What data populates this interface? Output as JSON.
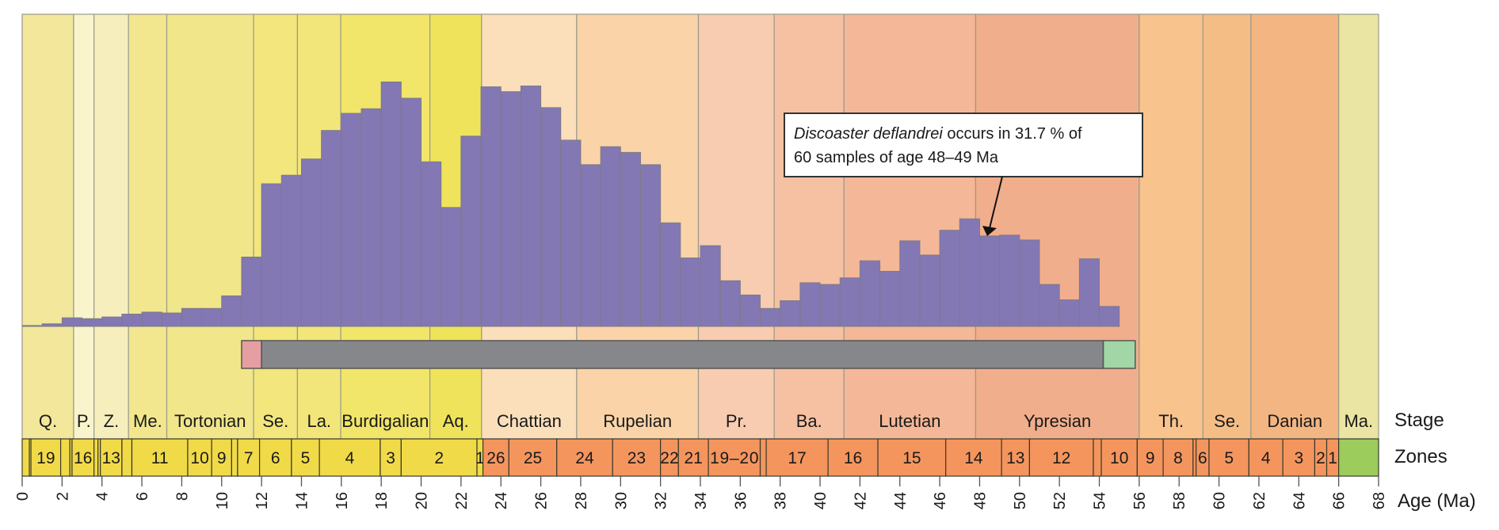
{
  "chart_data": {
    "type": "bar",
    "title": "",
    "xlabel": "Age (Ma)",
    "ylabel": "",
    "xlim": [
      0,
      68
    ],
    "ylim": [
      0,
      100
    ],
    "grid": false,
    "x_ticks": [
      0,
      2,
      4,
      6,
      8,
      10,
      12,
      14,
      16,
      18,
      20,
      22,
      24,
      26,
      28,
      30,
      32,
      34,
      36,
      38,
      40,
      42,
      44,
      46,
      48,
      50,
      52,
      54,
      56,
      58,
      60,
      62,
      64,
      66,
      68
    ],
    "bin_width_ma": 1,
    "series": [
      {
        "name": "Discoaster deflandrei occurrence (%)",
        "color": "#8378b4",
        "bins_start": [
          0,
          1,
          2,
          3,
          4,
          5,
          6,
          7,
          8,
          9,
          10,
          11,
          12,
          13,
          14,
          15,
          16,
          17,
          18,
          19,
          20,
          21,
          22,
          23,
          24,
          25,
          26,
          27,
          28,
          29,
          30,
          31,
          32,
          33,
          34,
          35,
          36,
          37,
          38,
          39,
          40,
          41,
          42,
          43,
          44,
          45,
          46,
          47,
          48,
          49,
          50,
          51,
          52,
          53,
          54
        ],
        "values": [
          0.3,
          0.9,
          3.0,
          2.7,
          3.3,
          4.3,
          5.0,
          4.7,
          6.3,
          6.3,
          10.7,
          24.3,
          50.0,
          53.0,
          58.7,
          68.7,
          74.7,
          76.3,
          85.7,
          80.0,
          57.7,
          41.7,
          66.7,
          84.0,
          82.3,
          84.3,
          76.7,
          65.3,
          56.7,
          63.0,
          61.0,
          56.7,
          36.3,
          24.0,
          28.3,
          16.0,
          11.0,
          6.3,
          9.0,
          15.3,
          14.7,
          17.0,
          23.0,
          19.3,
          30.0,
          25.0,
          33.7,
          37.7,
          31.7,
          32.0,
          30.3,
          14.7,
          9.3,
          23.7,
          7.0
        ]
      }
    ],
    "range_bar": [
      {
        "name": "first-appearance-uncertainty",
        "start": 11.0,
        "end": 12.0,
        "color": "#e59fa3"
      },
      {
        "name": "range",
        "start": 12.0,
        "end": 54.2,
        "color": "#86878b"
      },
      {
        "name": "last-appearance-uncertainty",
        "start": 54.2,
        "end": 55.8,
        "color": "#a2d6a6"
      }
    ],
    "annotation": {
      "species": "Discoaster deflandrei",
      "text": " occurs in 31.7 % of",
      "line2": "60 samples of age 48–49 Ma",
      "target_bin_start": 48,
      "target_value": 31.7
    },
    "stages": [
      {
        "label": "Q.",
        "start": 0,
        "end": 2.58,
        "color": "#f2e79a"
      },
      {
        "label": "P.",
        "start": 2.58,
        "end": 3.6,
        "color": "#f9f4cc"
      },
      {
        "label": "Z.",
        "start": 3.6,
        "end": 5.33,
        "color": "#f6efbd"
      },
      {
        "label": "Me.",
        "start": 5.33,
        "end": 7.25,
        "color": "#f2e78f"
      },
      {
        "label": "Tortonian",
        "start": 7.25,
        "end": 11.6,
        "color": "#f1e68a"
      },
      {
        "label": "Se.",
        "start": 11.6,
        "end": 13.8,
        "color": "#f2e67c"
      },
      {
        "label": "La.",
        "start": 13.8,
        "end": 15.97,
        "color": "#f2e67a"
      },
      {
        "label": "Burdigalian",
        "start": 15.97,
        "end": 20.44,
        "color": "#f1e56a"
      },
      {
        "label": "Aq.",
        "start": 20.44,
        "end": 23.03,
        "color": "#efe35c"
      },
      {
        "label": "Chattian",
        "start": 23.03,
        "end": 27.8,
        "color": "#fbdfbb"
      },
      {
        "label": "Rupelian",
        "start": 27.8,
        "end": 33.9,
        "color": "#fad4a8"
      },
      {
        "label": "Pr.",
        "start": 33.9,
        "end": 37.7,
        "color": "#f8ccb0"
      },
      {
        "label": "Ba.",
        "start": 37.7,
        "end": 41.2,
        "color": "#f6c1a2"
      },
      {
        "label": "Lutetian",
        "start": 41.2,
        "end": 47.8,
        "color": "#f4b797"
      },
      {
        "label": "Ypresian",
        "start": 47.8,
        "end": 56.0,
        "color": "#f1ae8c"
      },
      {
        "label": "Th.",
        "start": 56.0,
        "end": 59.2,
        "color": "#f8c38c"
      },
      {
        "label": "Se.",
        "start": 59.2,
        "end": 61.6,
        "color": "#f5bd86"
      },
      {
        "label": "Danian",
        "start": 61.6,
        "end": 66.0,
        "color": "#f3b682"
      },
      {
        "label": "Ma.",
        "start": 66.0,
        "end": 68.0,
        "color": "#ebe5a3"
      }
    ],
    "zones": [
      {
        "label": "",
        "start": 0,
        "end": 0.36,
        "color": "#f1da47"
      },
      {
        "label": "",
        "start": 0.36,
        "end": 0.44,
        "color": "#f1da47"
      },
      {
        "label": "19",
        "start": 0.44,
        "end": 1.93,
        "color": "#f1da47"
      },
      {
        "label": "",
        "start": 1.93,
        "end": 2.39,
        "color": "#f1da47"
      },
      {
        "label": "",
        "start": 2.39,
        "end": 2.5,
        "color": "#f1da47"
      },
      {
        "label": "16",
        "start": 2.5,
        "end": 3.6,
        "color": "#f1da47"
      },
      {
        "label": "",
        "start": 3.6,
        "end": 3.8,
        "color": "#f1da47"
      },
      {
        "label": "",
        "start": 3.8,
        "end": 3.92,
        "color": "#f1da47"
      },
      {
        "label": "13",
        "start": 3.92,
        "end": 5.0,
        "color": "#f1da47"
      },
      {
        "label": "",
        "start": 5.0,
        "end": 5.5,
        "color": "#f1da47"
      },
      {
        "label": "11",
        "start": 5.5,
        "end": 8.3,
        "color": "#f1da47"
      },
      {
        "label": "10",
        "start": 8.3,
        "end": 9.5,
        "color": "#f1da47"
      },
      {
        "label": "9",
        "start": 9.5,
        "end": 10.5,
        "color": "#f1da47"
      },
      {
        "label": "",
        "start": 10.5,
        "end": 10.8,
        "color": "#f1da47"
      },
      {
        "label": "7",
        "start": 10.8,
        "end": 11.9,
        "color": "#f1da47"
      },
      {
        "label": "6",
        "start": 11.9,
        "end": 13.5,
        "color": "#f1da47"
      },
      {
        "label": "5",
        "start": 13.5,
        "end": 14.9,
        "color": "#f1da47"
      },
      {
        "label": "4",
        "start": 14.9,
        "end": 17.95,
        "color": "#f1da47"
      },
      {
        "label": "3",
        "start": 17.95,
        "end": 19.0,
        "color": "#f1da47"
      },
      {
        "label": "2",
        "start": 19.0,
        "end": 22.8,
        "color": "#f1da47"
      },
      {
        "label": "1",
        "start": 22.8,
        "end": 23.1,
        "color": "#f1da47"
      },
      {
        "label": "26",
        "start": 23.1,
        "end": 24.4,
        "color": "#f4955e"
      },
      {
        "label": "25",
        "start": 24.4,
        "end": 26.8,
        "color": "#f4955e"
      },
      {
        "label": "24",
        "start": 26.8,
        "end": 29.6,
        "color": "#f4955e"
      },
      {
        "label": "23",
        "start": 29.6,
        "end": 32.0,
        "color": "#f4955e"
      },
      {
        "label": "22",
        "start": 32.0,
        "end": 32.9,
        "color": "#f4955e"
      },
      {
        "label": "21",
        "start": 32.9,
        "end": 34.4,
        "color": "#f4955e"
      },
      {
        "label": "19–20",
        "start": 34.4,
        "end": 37.0,
        "color": "#f4955e"
      },
      {
        "label": "",
        "start": 37.0,
        "end": 37.3,
        "color": "#f4955e"
      },
      {
        "label": "17",
        "start": 37.3,
        "end": 40.4,
        "color": "#f4955e"
      },
      {
        "label": "16",
        "start": 40.4,
        "end": 42.9,
        "color": "#f4955e"
      },
      {
        "label": "15",
        "start": 42.9,
        "end": 46.3,
        "color": "#f4955e"
      },
      {
        "label": "14",
        "start": 46.3,
        "end": 49.1,
        "color": "#f4955e"
      },
      {
        "label": "13",
        "start": 49.1,
        "end": 50.5,
        "color": "#f4955e"
      },
      {
        "label": "12",
        "start": 50.5,
        "end": 53.7,
        "color": "#f4955e"
      },
      {
        "label": "",
        "start": 53.7,
        "end": 54.1,
        "color": "#f4955e"
      },
      {
        "label": "10",
        "start": 54.1,
        "end": 55.9,
        "color": "#f4955e"
      },
      {
        "label": "9",
        "start": 55.9,
        "end": 57.2,
        "color": "#f4955e"
      },
      {
        "label": "8",
        "start": 57.2,
        "end": 58.7,
        "color": "#f4955e"
      },
      {
        "label": "",
        "start": 58.7,
        "end": 58.85,
        "color": "#f4955e"
      },
      {
        "label": "6",
        "start": 58.85,
        "end": 59.5,
        "color": "#f4955e"
      },
      {
        "label": "5",
        "start": 59.5,
        "end": 61.5,
        "color": "#f4955e"
      },
      {
        "label": "4",
        "start": 61.5,
        "end": 63.2,
        "color": "#f4955e"
      },
      {
        "label": "3",
        "start": 63.2,
        "end": 64.8,
        "color": "#f4955e"
      },
      {
        "label": "2",
        "start": 64.8,
        "end": 65.4,
        "color": "#f4955e"
      },
      {
        "label": "1",
        "start": 65.4,
        "end": 66.0,
        "color": "#f4955e"
      },
      {
        "label": "",
        "start": 66.0,
        "end": 68.0,
        "color": "#9bcc5c"
      }
    ],
    "row_labels": {
      "stage": "Stage",
      "zones": "Zones",
      "age": "Age (Ma)"
    }
  }
}
